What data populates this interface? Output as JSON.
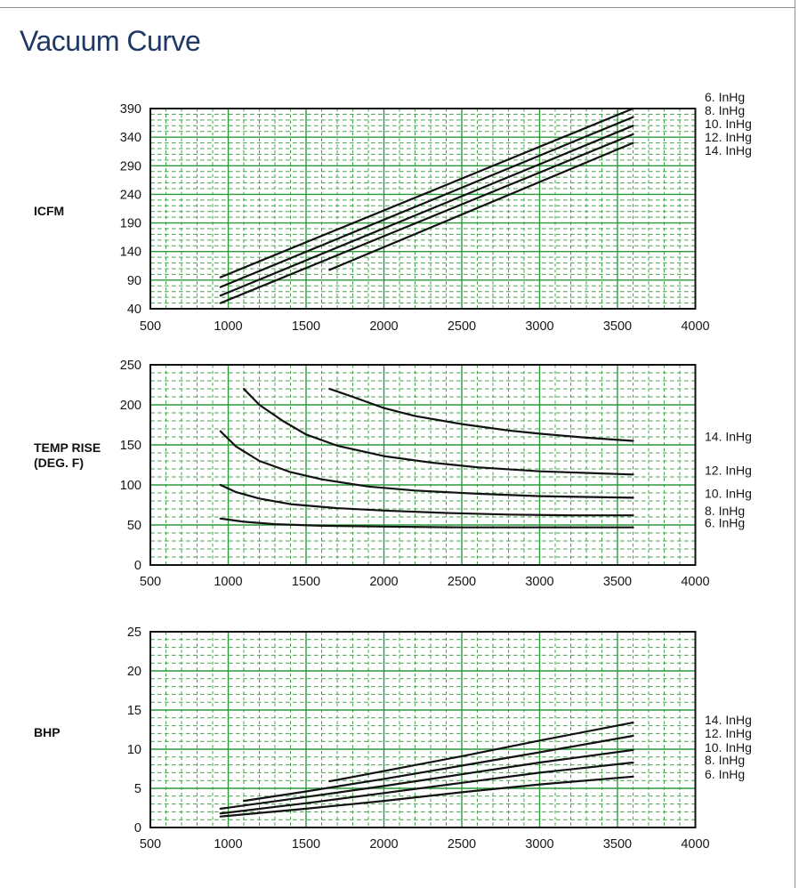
{
  "page": {
    "title": "Vacuum Curve"
  },
  "colors": {
    "title": "#1f3865",
    "grid_minor": "#3fa344",
    "grid_major": "#2c9a38",
    "axis": "#111111",
    "line": "#111111",
    "text": "#161616",
    "page_rule": "#8f8f8f"
  },
  "chart_data": [
    {
      "id": "icfm",
      "type": "line",
      "title": "",
      "xlabel": "",
      "ylabel": "ICFM",
      "ylabel_lines": [
        "ICFM"
      ],
      "xlim": [
        500,
        4000
      ],
      "ylim": [
        40,
        390
      ],
      "x_ticks": [
        500,
        1000,
        1500,
        2000,
        2500,
        3000,
        3500,
        4000
      ],
      "y_ticks": [
        40,
        90,
        140,
        190,
        240,
        290,
        340,
        390
      ],
      "x_minor_step": 100,
      "x_major_step": 500,
      "y_minor_step": 10,
      "y_major_step": 50,
      "grid": "both",
      "legend_position": "right",
      "legend": [
        "6. InHg",
        "8. InHg",
        "10. InHg",
        "12. InHg",
        "14. InHg"
      ],
      "series": [
        {
          "name": "6. InHg",
          "points": [
            [
              950,
              95
            ],
            [
              3600,
              390
            ]
          ]
        },
        {
          "name": "8. InHg",
          "points": [
            [
              950,
              78
            ],
            [
              3600,
              375
            ]
          ]
        },
        {
          "name": "10. InHg",
          "points": [
            [
              950,
              63
            ],
            [
              3600,
              360
            ]
          ]
        },
        {
          "name": "12. InHg",
          "points": [
            [
              950,
              50
            ],
            [
              3600,
              345
            ]
          ]
        },
        {
          "name": "14. InHg",
          "points": [
            [
              1650,
              108
            ],
            [
              3600,
              330
            ]
          ]
        }
      ]
    },
    {
      "id": "temp-rise",
      "type": "line",
      "title": "",
      "xlabel": "",
      "ylabel": "TEMP RISE (DEG. F)",
      "ylabel_lines": [
        "TEMP RISE",
        "(DEG. F)"
      ],
      "xlim": [
        500,
        4000
      ],
      "ylim": [
        0,
        250
      ],
      "x_ticks": [
        500,
        1000,
        1500,
        2000,
        2500,
        3000,
        3500,
        4000
      ],
      "y_ticks": [
        0,
        50,
        100,
        150,
        200,
        250
      ],
      "x_minor_step": 100,
      "x_major_step": 500,
      "y_minor_step": 10,
      "y_major_step": 50,
      "grid": "both",
      "legend_position": "right",
      "legend": [
        "14. InHg",
        "12. InHg",
        "10. InHg",
        "8. InHg",
        "6. InHg"
      ],
      "series": [
        {
          "name": "14. InHg",
          "points": [
            [
              1650,
              220
            ],
            [
              1800,
              210
            ],
            [
              2000,
              196
            ],
            [
              2200,
              186
            ],
            [
              2500,
              176
            ],
            [
              2800,
              168
            ],
            [
              3000,
              164
            ],
            [
              3300,
              159
            ],
            [
              3600,
              155
            ]
          ]
        },
        {
          "name": "12. InHg",
          "points": [
            [
              1100,
              220
            ],
            [
              1200,
              200
            ],
            [
              1350,
              180
            ],
            [
              1500,
              163
            ],
            [
              1700,
              149
            ],
            [
              2000,
              136
            ],
            [
              2300,
              128
            ],
            [
              2600,
              122
            ],
            [
              3000,
              117
            ],
            [
              3300,
              115
            ],
            [
              3600,
              113
            ]
          ]
        },
        {
          "name": "10. InHg",
          "points": [
            [
              950,
              167
            ],
            [
              1050,
              148
            ],
            [
              1200,
              130
            ],
            [
              1400,
              116
            ],
            [
              1600,
              107
            ],
            [
              1900,
              98
            ],
            [
              2200,
              93
            ],
            [
              2600,
              89
            ],
            [
              3000,
              86
            ],
            [
              3600,
              84
            ]
          ]
        },
        {
          "name": "8. InHg",
          "points": [
            [
              950,
              100
            ],
            [
              1050,
              91
            ],
            [
              1200,
              83
            ],
            [
              1400,
              76
            ],
            [
              1700,
              71
            ],
            [
              2000,
              68
            ],
            [
              2400,
              65
            ],
            [
              2800,
              63
            ],
            [
              3200,
              62
            ],
            [
              3600,
              62
            ]
          ]
        },
        {
          "name": "6. InHg",
          "points": [
            [
              950,
              58
            ],
            [
              1100,
              54
            ],
            [
              1300,
              51
            ],
            [
              1600,
              49
            ],
            [
              2000,
              48
            ],
            [
              2500,
              47
            ],
            [
              3000,
              47
            ],
            [
              3600,
              47
            ]
          ]
        }
      ]
    },
    {
      "id": "bhp",
      "type": "line",
      "title": "",
      "xlabel": "",
      "ylabel": "BHP",
      "ylabel_lines": [
        "BHP"
      ],
      "xlim": [
        500,
        4000
      ],
      "ylim": [
        0,
        25
      ],
      "x_ticks": [
        500,
        1000,
        1500,
        2000,
        2500,
        3000,
        3500,
        4000
      ],
      "y_ticks": [
        0,
        5,
        10,
        15,
        20,
        25
      ],
      "x_minor_step": 100,
      "x_major_step": 500,
      "y_minor_step": 1,
      "y_major_step": 5,
      "grid": "both",
      "legend_position": "right",
      "legend": [
        "14. InHg",
        "12. InHg",
        "10. InHg",
        "8. InHg",
        "6. InHg"
      ],
      "series": [
        {
          "name": "14. InHg",
          "points": [
            [
              1650,
              5.9
            ],
            [
              2000,
              7.2
            ],
            [
              2500,
              9.1
            ],
            [
              3000,
              11.1
            ],
            [
              3600,
              13.4
            ]
          ]
        },
        {
          "name": "12. InHg",
          "points": [
            [
              1100,
              3.4
            ],
            [
              1500,
              4.6
            ],
            [
              2000,
              6.2
            ],
            [
              2500,
              7.9
            ],
            [
              3000,
              9.6
            ],
            [
              3600,
              11.7
            ]
          ]
        },
        {
          "name": "10. InHg",
          "points": [
            [
              950,
              2.4
            ],
            [
              1500,
              3.9
            ],
            [
              2000,
              5.3
            ],
            [
              2500,
              6.8
            ],
            [
              3000,
              8.3
            ],
            [
              3600,
              9.9
            ]
          ]
        },
        {
          "name": "8. InHg",
          "points": [
            [
              950,
              1.8
            ],
            [
              1500,
              3.1
            ],
            [
              2000,
              4.4
            ],
            [
              2500,
              5.7
            ],
            [
              3000,
              7.0
            ],
            [
              3600,
              8.3
            ]
          ]
        },
        {
          "name": "6. InHg",
          "points": [
            [
              950,
              1.4
            ],
            [
              1500,
              2.4
            ],
            [
              2000,
              3.4
            ],
            [
              2500,
              4.5
            ],
            [
              3000,
              5.5
            ],
            [
              3600,
              6.5
            ]
          ]
        }
      ]
    }
  ]
}
